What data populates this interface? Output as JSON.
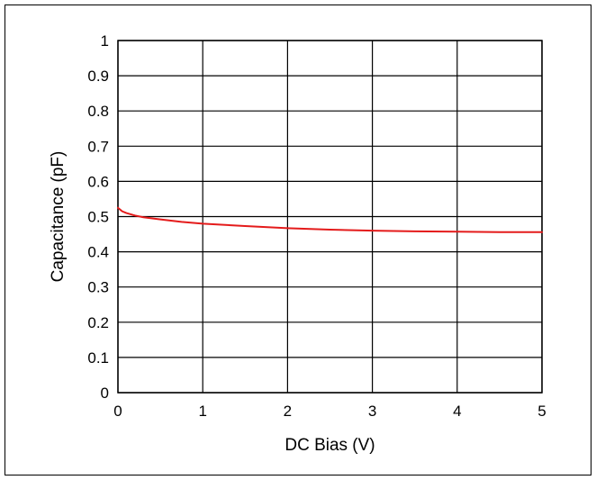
{
  "chart_data": {
    "type": "line",
    "title": "",
    "xlabel": "DC Bias (V)",
    "ylabel": "Capacitance (pF)",
    "xlim": [
      0,
      5
    ],
    "ylim": [
      0,
      1
    ],
    "grid": true,
    "x_ticks": [
      "0",
      "1",
      "2",
      "3",
      "4",
      "5"
    ],
    "y_ticks": [
      "0",
      "0.1",
      "0.2",
      "0.3",
      "0.4",
      "0.5",
      "0.6",
      "0.7",
      "0.8",
      "0.9",
      "1"
    ],
    "series": [
      {
        "color": "#e41b1b",
        "x": [
          0,
          0.05,
          0.1,
          0.2,
          0.3,
          0.5,
          0.75,
          1,
          1.5,
          2,
          2.5,
          3,
          3.5,
          4,
          4.5,
          5
        ],
        "y": [
          0.525,
          0.515,
          0.51,
          0.503,
          0.498,
          0.492,
          0.485,
          0.48,
          0.473,
          0.467,
          0.463,
          0.46,
          0.458,
          0.457,
          0.456,
          0.456
        ]
      }
    ]
  }
}
